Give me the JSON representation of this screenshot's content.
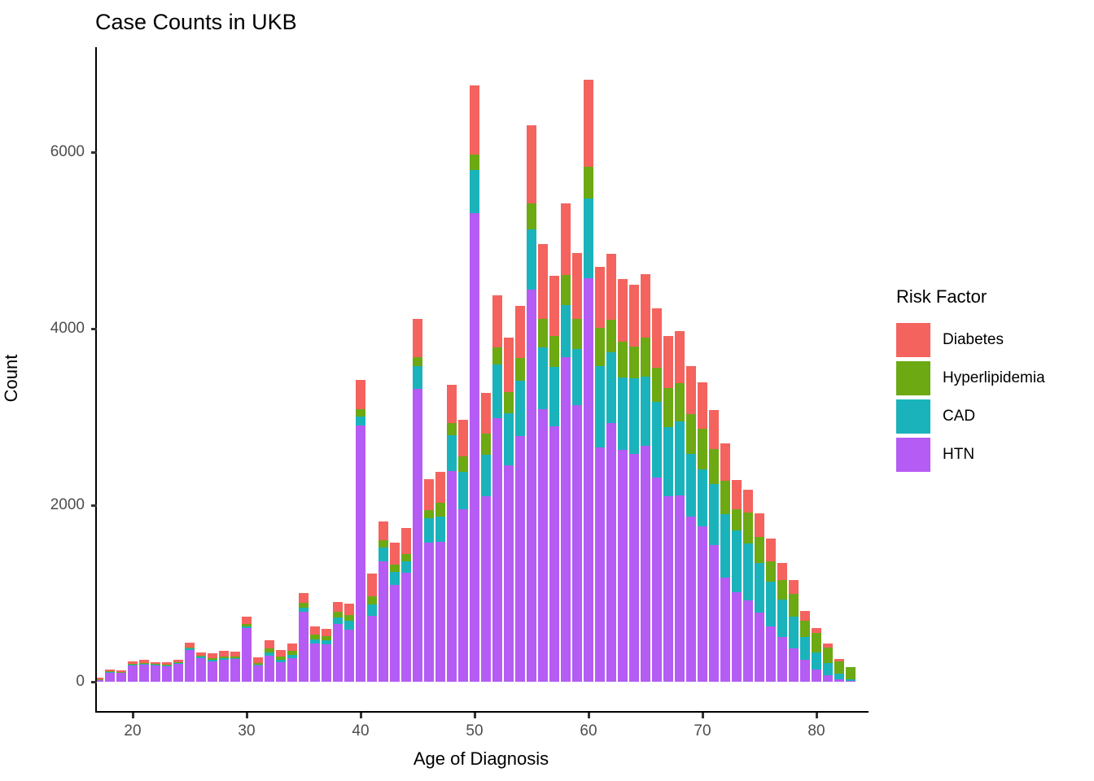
{
  "title": "Case Counts in UKB",
  "x_axis": {
    "label": "Age of Diagnosis",
    "ticks": [
      20,
      30,
      40,
      50,
      60,
      70,
      80
    ]
  },
  "y_axis": {
    "label": "Count",
    "ticks": [
      0,
      2000,
      4000,
      6000
    ]
  },
  "legend": {
    "title": "Risk Factor",
    "items": [
      {
        "label": "Diabetes",
        "color": "#f4635e"
      },
      {
        "label": "Hyperlipidemia",
        "color": "#6ca913"
      },
      {
        "label": "CAD",
        "color": "#1ab3bc"
      },
      {
        "label": "HTN",
        "color": "#b55cf4"
      }
    ]
  },
  "chart_data": {
    "type": "bar",
    "stacked": true,
    "title": "Case Counts in UKB",
    "xlabel": "Age of Diagnosis",
    "ylabel": "Count",
    "xlim": [
      16.5,
      83.5
    ],
    "ylim": [
      0,
      6900
    ],
    "grid": false,
    "legend_position": "right",
    "x": [
      17,
      18,
      19,
      20,
      21,
      22,
      23,
      24,
      25,
      26,
      27,
      28,
      29,
      30,
      31,
      32,
      33,
      34,
      35,
      36,
      37,
      38,
      39,
      40,
      41,
      42,
      43,
      44,
      45,
      46,
      47,
      48,
      49,
      50,
      51,
      52,
      53,
      54,
      55,
      56,
      57,
      58,
      59,
      60,
      61,
      62,
      63,
      64,
      65,
      66,
      67,
      68,
      69,
      70,
      71,
      72,
      73,
      74,
      75,
      76,
      77,
      78,
      79,
      80,
      81,
      82,
      83
    ],
    "series": [
      {
        "name": "HTN",
        "color": "#b55cf4",
        "values": [
          25,
          110,
          105,
          190,
          195,
          185,
          180,
          200,
          360,
          270,
          235,
          250,
          255,
          605,
          180,
          295,
          221,
          264,
          796,
          430,
          420,
          657,
          590,
          2905,
          750,
          1365,
          1100,
          1235,
          3315,
          1580,
          1585,
          2390,
          1955,
          5310,
          2100,
          2990,
          2455,
          2780,
          4440,
          3085,
          2890,
          3680,
          3135,
          4575,
          2655,
          2930,
          2625,
          2580,
          2670,
          2315,
          2100,
          2115,
          1870,
          1760,
          1550,
          1180,
          1010,
          920,
          780,
          625,
          505,
          380,
          245,
          135,
          75,
          30,
          10
        ]
      },
      {
        "name": "CAD",
        "color": "#1ab3bc",
        "values": [
          3,
          5,
          5,
          8,
          10,
          8,
          8,
          10,
          15,
          12,
          15,
          20,
          15,
          21,
          15,
          40,
          31,
          40,
          40,
          50,
          52,
          67,
          105,
          100,
          130,
          155,
          145,
          130,
          265,
          275,
          285,
          400,
          425,
          485,
          475,
          600,
          585,
          630,
          680,
          705,
          680,
          585,
          635,
          900,
          920,
          800,
          820,
          855,
          785,
          860,
          785,
          830,
          710,
          645,
          690,
          720,
          705,
          645,
          570,
          505,
          430,
          355,
          260,
          200,
          140,
          60,
          15
        ]
      },
      {
        "name": "Hyperlipidemia",
        "color": "#6ca913",
        "values": [
          2,
          5,
          5,
          7,
          10,
          8,
          8,
          10,
          15,
          12,
          15,
          18,
          14,
          25,
          15,
          40,
          37,
          46,
          61,
          50,
          40,
          70,
          60,
          80,
          85,
          85,
          85,
          80,
          100,
          90,
          160,
          140,
          175,
          175,
          235,
          200,
          245,
          260,
          300,
          325,
          350,
          345,
          345,
          360,
          435,
          375,
          410,
          365,
          445,
          385,
          440,
          440,
          450,
          460,
          395,
          380,
          240,
          350,
          290,
          230,
          215,
          260,
          185,
          215,
          170,
          140,
          140
        ]
      },
      {
        "name": "Diabetes",
        "color": "#f4635e",
        "values": [
          12,
          18,
          15,
          25,
          33,
          22,
          22,
          25,
          50,
          42,
          55,
          64,
          57,
          83,
          63,
          98,
          71,
          86,
          104,
          95,
          84,
          107,
          130,
          330,
          260,
          210,
          245,
          300,
          430,
          350,
          345,
          435,
          415,
          785,
          460,
          585,
          615,
          585,
          880,
          840,
          680,
          810,
          740,
          985,
          690,
          740,
          705,
          695,
          715,
          670,
          590,
          585,
          545,
          530,
          445,
          420,
          330,
          260,
          270,
          260,
          200,
          155,
          110,
          60,
          45,
          30,
          0
        ]
      }
    ]
  }
}
